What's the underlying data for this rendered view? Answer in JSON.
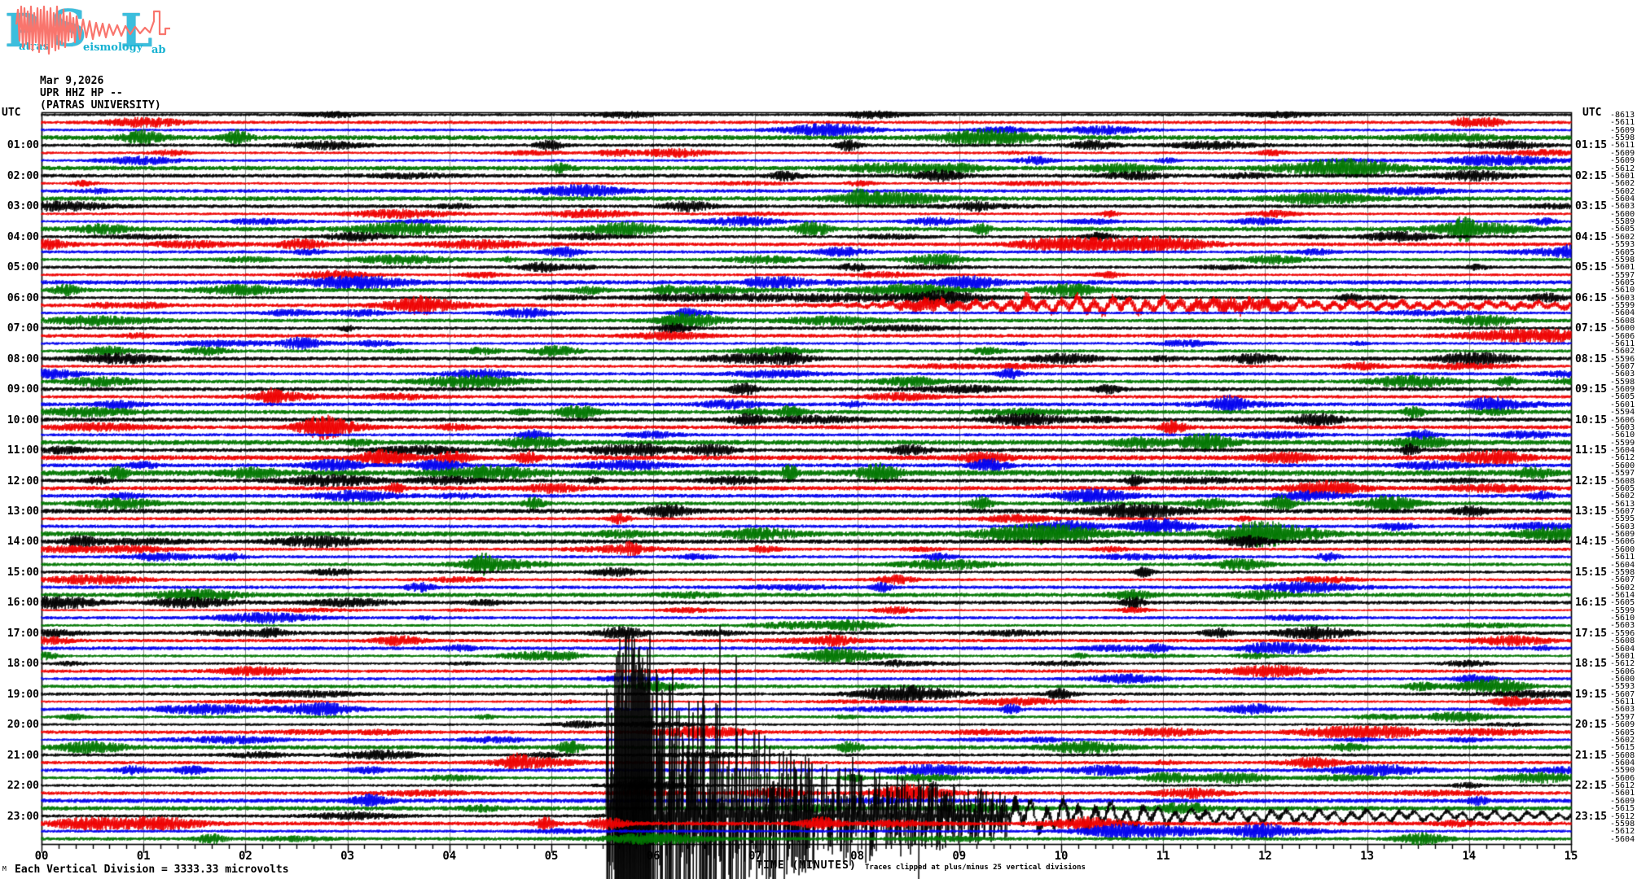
{
  "logo": {
    "letters": [
      "P",
      "S",
      "L"
    ],
    "words": [
      "atras",
      "eismology",
      "ab"
    ],
    "letter_color": "#3cbedd",
    "word_color": "#17b2d2",
    "wave_color": "#f9756d"
  },
  "header": {
    "date": "Mar 9,2026",
    "station": "UPR HHZ HP --",
    "affiliation": "(PATRAS UNIVERSITY)"
  },
  "axes": {
    "left_title": "UTC",
    "right_title": "UTC",
    "left_labels": [
      "01:00",
      "02:00",
      "03:00",
      "04:00",
      "05:00",
      "06:00",
      "07:00",
      "08:00",
      "09:00",
      "10:00",
      "11:00",
      "12:00",
      "13:00",
      "14:00",
      "15:00",
      "16:00",
      "17:00",
      "18:00",
      "19:00",
      "20:00",
      "21:00",
      "22:00",
      "23:00"
    ],
    "right_labels": [
      "01:15",
      "02:15",
      "03:15",
      "04:15",
      "05:15",
      "06:15",
      "07:15",
      "08:15",
      "09:15",
      "10:15",
      "11:15",
      "12:15",
      "13:15",
      "14:15",
      "15:15",
      "16:15",
      "17:15",
      "18:15",
      "19:15",
      "20:15",
      "21:15",
      "22:15",
      "23:15"
    ],
    "x_labels": [
      "00",
      "01",
      "02",
      "03",
      "04",
      "05",
      "06",
      "07",
      "08",
      "09",
      "10",
      "11",
      "12",
      "13",
      "14",
      "15"
    ],
    "xlabel": "TIME (MINUTES)",
    "footer_left": "Each Vertical Division = 3333.33 microvolts",
    "footer_right": "Traces clipped at plus/minus 25 vertical divisions",
    "corner_mark": "M"
  },
  "chart_data": {
    "type": "line",
    "subtype": "helicorder-seismogram",
    "title": "UPR HHZ HP -- (PATRAS UNIVERSITY) Mar 9,2026",
    "xlabel": "TIME (MINUTES)",
    "x_range_minutes": [
      0,
      15
    ],
    "minor_tick_minutes": 0.1667,
    "rows": 96,
    "traces_per_hour": 4,
    "row_duration_minutes": 15,
    "first_row_start": "00:00",
    "trace_colors": [
      "#000000",
      "#ee0000",
      "#0000ee",
      "#007700"
    ],
    "grid_color": "#8a8a8a",
    "clip_divisions": 25,
    "microvolts_per_division": 3333.33,
    "row_offsets_right": [
      "-8613",
      "-5611",
      "-5609",
      "-5598",
      "-5611",
      "-5609",
      "-5609",
      "-5612",
      "-5601",
      "-5602",
      "-5602",
      "-5604",
      "-5603",
      "-5600",
      "-5589",
      "-5605",
      "-5602",
      "-5593",
      "-5605",
      "-5598",
      "-5601",
      "-5597",
      "-5605",
      "-5610",
      "-5603",
      "-5599",
      "-5604",
      "-5608",
      "-5600",
      "-5606",
      "-5611",
      "-5602",
      "-5596",
      "-5607",
      "-5603",
      "-5598",
      "-5609",
      "-5605",
      "-5601",
      "-5594",
      "-5606",
      "-5603",
      "-5610",
      "-5599",
      "-5604",
      "-5612",
      "-5600",
      "-5597",
      "-5608",
      "-5605",
      "-5602",
      "-5613",
      "-5607",
      "-5595",
      "-5603",
      "-5609",
      "-5606",
      "-5600",
      "-5611",
      "-5604",
      "-5598",
      "-5607",
      "-5602",
      "-5614",
      "-5605",
      "-5599",
      "-5610",
      "-5603",
      "-5596",
      "-5608",
      "-5604",
      "-5601",
      "-5612",
      "-5606",
      "-5600",
      "-5593",
      "-5607",
      "-5611",
      "-5603",
      "-5597",
      "-5609",
      "-5605",
      "-5602",
      "-5615",
      "-5608",
      "-5604",
      "-5590",
      "-5606",
      "-5612",
      "-5601",
      "-5609",
      "-5615",
      "-5612",
      "-5598",
      "-5612",
      "-5604"
    ],
    "event": {
      "row": 92,
      "row_time": "23:00",
      "start_min": 5.54,
      "phases": [
        {
          "t0": 5.54,
          "t1": 5.62,
          "amp0": 210,
          "amp1": 210,
          "mode": "spike"
        },
        {
          "t0": 5.62,
          "t1": 5.98,
          "amp0": 234,
          "amp1": 234,
          "mode": "solid"
        },
        {
          "t0": 5.98,
          "t1": 6.6,
          "amp0": 190,
          "amp1": 170,
          "mode": "spike"
        },
        {
          "t0": 6.6,
          "t1": 7.6,
          "amp0": 140,
          "amp1": 70,
          "mode": "spike"
        },
        {
          "t0": 7.6,
          "t1": 9.5,
          "amp0": 70,
          "amp1": 28,
          "mode": "spike"
        },
        {
          "t0": 9.5,
          "t1": 11.2,
          "amp0": 26,
          "amp1": 12,
          "mode": "wave"
        },
        {
          "t0": 11.2,
          "t1": 15.01,
          "amp0": 10,
          "amp1": 6,
          "mode": "wave"
        }
      ]
    },
    "bursts": [
      {
        "row": 25,
        "freq": "low",
        "points": [
          [
            7.3,
            0
          ],
          [
            8.5,
            4
          ],
          [
            9.5,
            7
          ],
          [
            10.2,
            11
          ],
          [
            10.8,
            11
          ],
          [
            11.5,
            6
          ],
          [
            15,
            4.5
          ]
        ]
      },
      {
        "row": 22,
        "freq": "high",
        "points": [
          [
            6.85,
            0
          ],
          [
            7.0,
            5
          ],
          [
            7.3,
            6
          ],
          [
            7.65,
            0
          ]
        ]
      },
      {
        "row": 24,
        "freq": "high",
        "points": [
          [
            5.5,
            0
          ],
          [
            6.2,
            3.5
          ],
          [
            8.0,
            4
          ],
          [
            9.2,
            0
          ]
        ]
      }
    ]
  }
}
